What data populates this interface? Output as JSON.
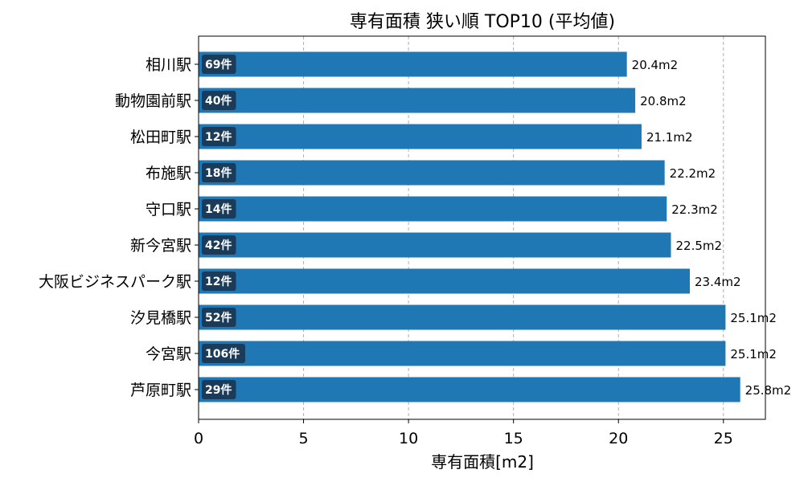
{
  "chart_data": {
    "type": "bar",
    "orientation": "horizontal",
    "title": "専有面積 狭い順 TOP10 (平均値)",
    "xlabel": "専有面積[m2]",
    "ylabel": "",
    "xlim": [
      0,
      27
    ],
    "xticks": [
      0,
      5,
      10,
      15,
      20,
      25
    ],
    "grid": "x-dashed",
    "categories": [
      "相川駅",
      "動物園前駅",
      "松田町駅",
      "布施駅",
      "守口駅",
      "新今宮駅",
      "大阪ビジネスパーク駅",
      "汐見橋駅",
      "今宮駅",
      "芦原町駅"
    ],
    "values": [
      20.4,
      20.8,
      21.1,
      22.2,
      22.3,
      22.5,
      23.4,
      25.1,
      25.1,
      25.8
    ],
    "value_labels": [
      "20.4m2",
      "20.8m2",
      "21.1m2",
      "22.2m2",
      "22.3m2",
      "22.5m2",
      "23.4m2",
      "25.1m2",
      "25.1m2",
      "25.8m2"
    ],
    "counts": [
      "69件",
      "40件",
      "12件",
      "18件",
      "14件",
      "42件",
      "12件",
      "52件",
      "106件",
      "29件"
    ],
    "colors": {
      "bar": "#1f77b4",
      "badge": "#1b3b5a"
    }
  }
}
